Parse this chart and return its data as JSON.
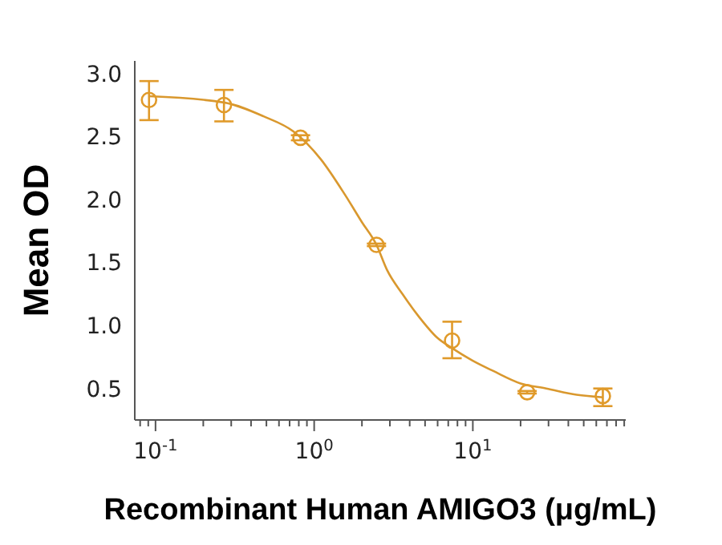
{
  "chart_data": {
    "type": "scatter",
    "xlabel": "Recombinant Human AMIGO3 (μg/mL)",
    "ylabel": "Mean OD",
    "log": "x",
    "marker": "circle",
    "line_style": "solid",
    "xlim": [
      0.074,
      92
    ],
    "ylim": [
      0.25,
      3.1
    ],
    "xticks": [
      {
        "value": 0.08,
        "label": null
      },
      {
        "value": 0.09,
        "label": null
      },
      {
        "value": 0.1,
        "label": "10$^{-1}$"
      },
      {
        "value": 0.2,
        "label": null
      },
      {
        "value": 0.3,
        "label": null
      },
      {
        "value": 0.4,
        "label": null
      },
      {
        "value": 0.5,
        "label": null
      },
      {
        "value": 0.6,
        "label": null
      },
      {
        "value": 0.7,
        "label": null
      },
      {
        "value": 0.8,
        "label": null
      },
      {
        "value": 0.9,
        "label": null
      },
      {
        "value": 1,
        "label": "10$^{0}$"
      },
      {
        "value": 2,
        "label": null
      },
      {
        "value": 3,
        "label": null
      },
      {
        "value": 4,
        "label": null
      },
      {
        "value": 5,
        "label": null
      },
      {
        "value": 6,
        "label": null
      },
      {
        "value": 7,
        "label": null
      },
      {
        "value": 8,
        "label": null
      },
      {
        "value": 9,
        "label": null
      },
      {
        "value": 10,
        "label": "10$^{1}$"
      },
      {
        "value": 20,
        "label": null
      },
      {
        "value": 30,
        "label": null
      },
      {
        "value": 40,
        "label": null
      },
      {
        "value": 50,
        "label": null
      },
      {
        "value": 60,
        "label": null
      },
      {
        "value": 70,
        "label": null
      },
      {
        "value": 80,
        "label": null
      },
      {
        "value": 90,
        "label": null
      }
    ],
    "yticks": [
      {
        "value": 0.5,
        "label": "0.5"
      },
      {
        "value": 1,
        "label": "1.0"
      },
      {
        "value": 1.5,
        "label": "1.5"
      },
      {
        "value": 2,
        "label": "2.0"
      },
      {
        "value": 2.5,
        "label": "2.5"
      },
      {
        "value": 3,
        "label": "3.0"
      }
    ],
    "series": [
      {
        "color": "#e09a2a",
        "x": [
          0.091,
          0.27,
          0.82,
          2.47,
          7.4,
          22,
          66
        ],
        "values": [
          2.79,
          2.75,
          2.49,
          1.64,
          0.88,
          0.47,
          0.44
        ],
        "errors": [
          [
            2.63,
            2.94
          ],
          [
            2.62,
            2.87
          ],
          [
            2.47,
            2.51
          ],
          [
            1.63,
            1.65
          ],
          [
            0.74,
            1.03
          ],
          [
            0.46,
            0.48
          ],
          [
            0.36,
            0.5
          ]
        ]
      },
      {
        "type": "line",
        "color": "#d9982e",
        "marker": "none",
        "x": [
          0.091,
          0.27,
          0.48,
          0.74,
          1.1,
          1.56,
          2.0,
          2.47,
          2.88,
          3.6,
          4.57,
          6.0,
          7.4,
          10,
          13.4,
          20,
          29,
          45,
          66
        ],
        "values": [
          2.82,
          2.77,
          2.66,
          2.54,
          2.32,
          2.04,
          1.82,
          1.64,
          1.44,
          1.25,
          1.07,
          0.9,
          0.82,
          0.72,
          0.64,
          0.54,
          0.5,
          0.45,
          0.43
        ]
      }
    ]
  }
}
